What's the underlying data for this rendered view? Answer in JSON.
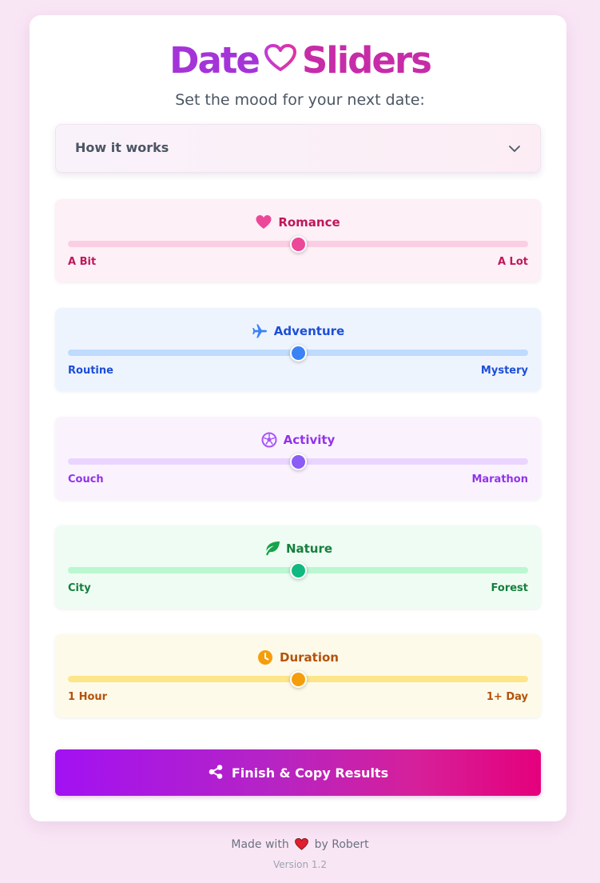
{
  "app": {
    "title_part1": "Date",
    "title_part2": "Sliders",
    "subtitle": "Set the mood for your next date:"
  },
  "accordion": {
    "label": "How it works",
    "expanded": false,
    "icon": "chevron-down-icon"
  },
  "sliders": [
    {
      "key": "romance",
      "title": "Romance",
      "icon": "heart-icon",
      "min_label": "A Bit",
      "max_label": "A Lot",
      "value": 0.5,
      "bg": "#fdf0f6",
      "track": "#fbcfe3",
      "thumb": "#ec4899",
      "text": "#be185d",
      "icon_color": "#ec4899"
    },
    {
      "key": "adventure",
      "title": "Adventure",
      "icon": "plane-icon",
      "min_label": "Routine",
      "max_label": "Mystery",
      "value": 0.5,
      "bg": "#eef4fe",
      "track": "#bfdbfe",
      "thumb": "#3b82f6",
      "text": "#1d4ed8",
      "icon_color": "#3b82f6"
    },
    {
      "key": "activity",
      "title": "Activity",
      "icon": "soccer-ball-icon",
      "min_label": "Couch",
      "max_label": "Marathon",
      "value": 0.5,
      "bg": "#faf3fe",
      "track": "#e9d5ff",
      "thumb": "#8b5cf6",
      "text": "#9333ea",
      "icon_color": "#a855f7"
    },
    {
      "key": "nature",
      "title": "Nature",
      "icon": "leaf-icon",
      "min_label": "City",
      "max_label": "Forest",
      "value": 0.5,
      "bg": "#effcf3",
      "track": "#bbf7d0",
      "thumb": "#10b981",
      "text": "#15803d",
      "icon_color": "#16a34a"
    },
    {
      "key": "duration",
      "title": "Duration",
      "icon": "clock-icon",
      "min_label": "1 Hour",
      "max_label": "1+ Day",
      "value": 0.5,
      "bg": "#fefaea",
      "track": "#fde68a",
      "thumb": "#f59e0b",
      "text": "#b45309",
      "icon_color": "#f59e0b"
    }
  ],
  "cta": {
    "label": "Finish & Copy Results",
    "icon": "share-icon"
  },
  "footer": {
    "made_with": "Made with",
    "by": "by Robert",
    "version": "Version 1.2",
    "heart_icon": "heart-icon"
  },
  "colors": {
    "page_bg": "#f9e6f5",
    "title_purple": "#a534d8",
    "title_pink": "#c62ca8",
    "cta_gradient_start": "#a211f2",
    "cta_gradient_end": "#e5007c"
  }
}
